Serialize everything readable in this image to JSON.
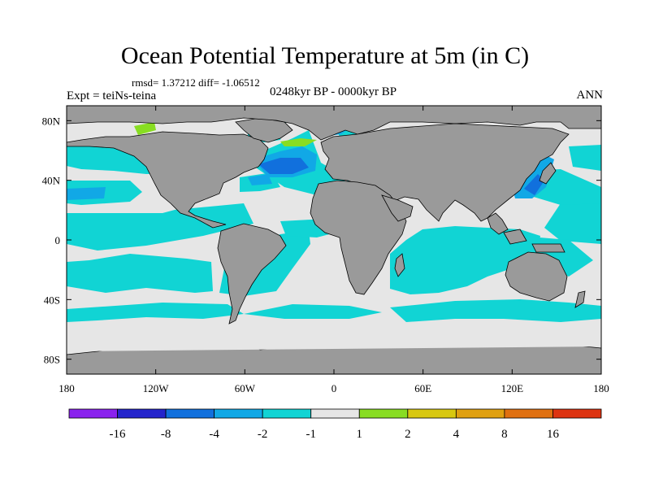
{
  "header": {
    "title": "Ocean Potential Temperature at 5m (in C)",
    "stats": "rmsd= 1.37212 diff= -1.06512",
    "experiment": "Expt = teiNs-teina",
    "period": "0248kyr BP - 0000kyr BP",
    "season": "ANN"
  },
  "map": {
    "lon_ticks": [
      {
        "lon": -180,
        "label": "180"
      },
      {
        "lon": -120,
        "label": "120W"
      },
      {
        "lon": -60,
        "label": "60W"
      },
      {
        "lon": 0,
        "label": "0"
      },
      {
        "lon": 60,
        "label": "60E"
      },
      {
        "lon": 120,
        "label": "120E"
      },
      {
        "lon": 180,
        "label": "180"
      }
    ],
    "lat_ticks": [
      {
        "lat": 80,
        "label": "80N"
      },
      {
        "lat": 40,
        "label": "40N"
      },
      {
        "lat": 0,
        "label": "0"
      },
      {
        "lat": -40,
        "label": "40S"
      },
      {
        "lat": -80,
        "label": "80S"
      }
    ],
    "colors": {
      "land": "#9a9a9a",
      "coast": "#000000",
      "neutral": "#e6e6e6",
      "cool_1_2": "#11d4d4",
      "cool_2_4": "#11a8e6",
      "cool_4_8": "#1170dd",
      "warm_1_2": "#88dd22"
    }
  },
  "colorbar": {
    "colors": [
      "#8a22ee",
      "#2424cc",
      "#1170dd",
      "#11a8e6",
      "#11d4d4",
      "#e6e6e6",
      "#88dd22",
      "#d8c810",
      "#e0a010",
      "#e07010",
      "#dd3311"
    ],
    "labels": [
      "-16",
      "-8",
      "-4",
      "-2",
      "-1",
      "1",
      "2",
      "4",
      "8",
      "16"
    ]
  }
}
